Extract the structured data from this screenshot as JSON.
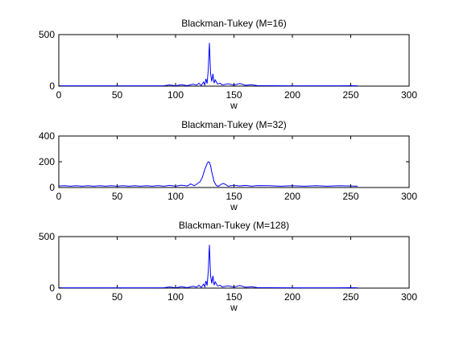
{
  "chart_data": [
    {
      "type": "line",
      "title": "Blackman-Tukey (M=16)",
      "xlabel": "w",
      "ylabel": "",
      "xlim": [
        0,
        300
      ],
      "ylim": [
        0,
        500
      ],
      "xticks": [
        0,
        50,
        100,
        150,
        200,
        250,
        300
      ],
      "yticks": [
        0,
        500
      ],
      "grid": false,
      "series": [
        {
          "color": "#0000ff",
          "x": [
            0,
            20,
            40,
            60,
            80,
            90,
            95,
            100,
            105,
            110,
            115,
            118,
            120,
            122,
            124,
            125,
            126,
            127,
            128,
            128.5,
            129,
            129.5,
            130,
            131,
            132,
            133,
            134,
            136,
            138,
            140,
            145,
            150,
            155,
            160,
            165,
            170,
            180,
            200,
            220,
            240,
            250,
            256
          ],
          "y": [
            3,
            3,
            3,
            3,
            3,
            4,
            12,
            3,
            14,
            5,
            18,
            10,
            28,
            6,
            40,
            12,
            70,
            25,
            160,
            300,
            420,
            260,
            120,
            45,
            120,
            30,
            60,
            20,
            28,
            12,
            22,
            10,
            25,
            8,
            14,
            5,
            4,
            3,
            3,
            3,
            4,
            3
          ]
        }
      ]
    },
    {
      "type": "line",
      "title": "Blackman-Tukey (M=32)",
      "xlabel": "w",
      "ylabel": "",
      "xlim": [
        0,
        300
      ],
      "ylim": [
        0,
        400
      ],
      "xticks": [
        0,
        50,
        100,
        150,
        200,
        250,
        300
      ],
      "yticks": [
        0,
        200,
        400
      ],
      "grid": false,
      "series": [
        {
          "color": "#0000ff",
          "x": [
            0,
            5,
            10,
            15,
            20,
            25,
            30,
            35,
            40,
            45,
            50,
            55,
            60,
            65,
            70,
            75,
            80,
            85,
            90,
            95,
            100,
            105,
            110,
            113,
            116,
            119,
            121,
            123,
            125,
            127,
            128,
            129,
            130,
            131,
            133,
            135,
            137,
            139,
            141,
            143,
            145,
            150,
            155,
            160,
            165,
            170,
            180,
            190,
            200,
            210,
            220,
            230,
            240,
            250,
            256
          ],
          "y": [
            12,
            14,
            10,
            14,
            10,
            14,
            10,
            14,
            10,
            14,
            10,
            14,
            10,
            14,
            10,
            14,
            10,
            15,
            10,
            16,
            10,
            18,
            12,
            28,
            14,
            32,
            45,
            80,
            140,
            185,
            200,
            195,
            170,
            120,
            45,
            14,
            10,
            25,
            32,
            22,
            10,
            18,
            12,
            16,
            10,
            15,
            14,
            10,
            14,
            10,
            14,
            10,
            14,
            12,
            10
          ]
        }
      ]
    },
    {
      "type": "line",
      "title": "Blackman-Tukey (M=128)",
      "xlabel": "w",
      "ylabel": "",
      "xlim": [
        0,
        300
      ],
      "ylim": [
        0,
        500
      ],
      "xticks": [
        0,
        50,
        100,
        150,
        200,
        250,
        300
      ],
      "yticks": [
        0,
        500
      ],
      "grid": false,
      "series": [
        {
          "color": "#0000ff",
          "x": [
            0,
            20,
            40,
            60,
            80,
            90,
            95,
            100,
            105,
            110,
            115,
            118,
            120,
            122,
            124,
            125,
            126,
            127,
            128,
            128.5,
            129,
            129.5,
            130,
            131,
            132,
            133,
            134,
            136,
            138,
            140,
            145,
            150,
            155,
            160,
            165,
            170,
            180,
            200,
            220,
            240,
            250,
            256
          ],
          "y": [
            3,
            3,
            3,
            3,
            3,
            4,
            12,
            3,
            14,
            5,
            18,
            10,
            28,
            6,
            40,
            12,
            70,
            25,
            160,
            300,
            420,
            260,
            120,
            45,
            120,
            30,
            60,
            20,
            28,
            12,
            22,
            10,
            25,
            8,
            14,
            5,
            4,
            3,
            3,
            3,
            4,
            3
          ]
        }
      ]
    }
  ]
}
